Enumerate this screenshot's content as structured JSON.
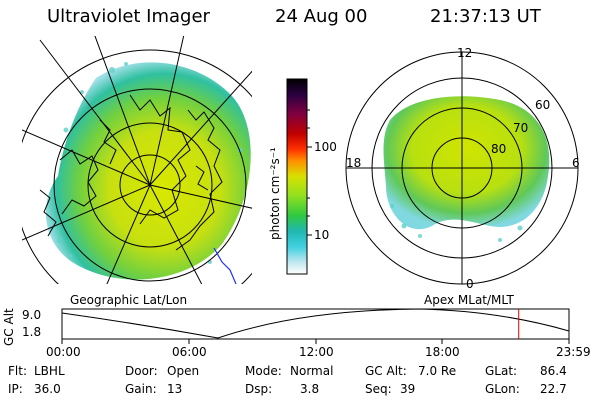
{
  "header": {
    "instrument": "Ultraviolet Imager",
    "date": "24 Aug 00",
    "time": "21:37:13 UT"
  },
  "colorbar": {
    "unit_label": "photon cm⁻²s⁻¹",
    "ticks": [
      "100",
      "10"
    ],
    "colors": [
      "#000000",
      "#2a0040",
      "#800040",
      "#c00000",
      "#ff3000",
      "#ff9000",
      "#d8e000",
      "#90e020",
      "#30c840",
      "#20b8b0",
      "#40d0e0",
      "#c0e8f0",
      "#ffffff"
    ]
  },
  "left_panel": {
    "caption": "Geographic Lat/Lon"
  },
  "right_panel": {
    "caption": "Apex MLat/MLT",
    "mlt_labels": {
      "top": "12",
      "left": "18",
      "right": "6",
      "bottom": "0"
    },
    "lat_labels": [
      "60",
      "70",
      "80"
    ]
  },
  "timeline": {
    "ylabel": "GC Alt",
    "yticks": [
      "9.0",
      "1.8"
    ],
    "xticks": [
      "00:00",
      "06:00",
      "12:00",
      "18:00",
      "23:59"
    ],
    "current_marker_hours": 21.62
  },
  "info": {
    "flt_label": "Flt:",
    "flt_value": "LBHL",
    "door_label": "Door:",
    "door_value": "Open",
    "mode_label": "Mode:",
    "mode_value": "Normal",
    "gcalt_label": "GC Alt:",
    "gcalt_value": "7.0 Re",
    "glat_label": "GLat:",
    "glat_value": "86.4",
    "ip_label": "IP:",
    "ip_value": "36.0",
    "gain_label": "Gain:",
    "gain_value": "13",
    "dsp_label": "Dsp:",
    "dsp_value": "3.8",
    "seq_label": "Seq:",
    "seq_value": "39",
    "glon_label": "GLon:",
    "glon_value": "22.7"
  }
}
